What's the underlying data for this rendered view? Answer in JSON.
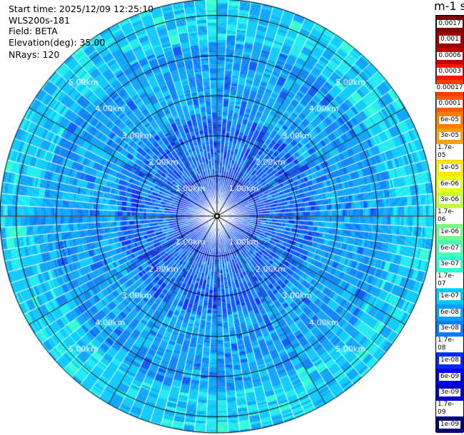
{
  "header": {
    "start_time": "Start time: 2025/12/09 12:25:10",
    "instrument": "WLS200s-181",
    "field": "Field: BETA",
    "elevation": "Elevation(deg): 35.00",
    "nrays": "NRays: 120"
  },
  "colorbar": {
    "unit_title": "m-1 sr-1",
    "bins": [
      {
        "label": "0.0017",
        "color": "#7f0000"
      },
      {
        "label": "0.001",
        "color": "#9f0000"
      },
      {
        "label": "0.0006",
        "color": "#c20000"
      },
      {
        "label": "0.0003",
        "color": "#ff1400"
      },
      {
        "label": "0.00017",
        "color": "#ff3c00"
      },
      {
        "label": "0.0001",
        "color": "#ff5a00"
      },
      {
        "label": "6e-05",
        "color": "#ff7d00"
      },
      {
        "label": "3e-05",
        "color": "#ffa000"
      },
      {
        "label": "1.7e-05",
        "color": "#ffc300"
      },
      {
        "label": "1e-05",
        "color": "#ffe800"
      },
      {
        "label": "6e-06",
        "color": "#e6ff14"
      },
      {
        "label": "3e-06",
        "color": "#c3ff37"
      },
      {
        "label": "1.7e-06",
        "color": "#8cff6e"
      },
      {
        "label": "1e-06",
        "color": "#6eff8c"
      },
      {
        "label": "6e-07",
        "color": "#46ffb4"
      },
      {
        "label": "3e-07",
        "color": "#28ffd2"
      },
      {
        "label": "1.7e-07",
        "color": "#14eaf0"
      },
      {
        "label": "1e-07",
        "color": "#00c8ff"
      },
      {
        "label": "6e-08",
        "color": "#00a0ff"
      },
      {
        "label": "3e-08",
        "color": "#007dff"
      },
      {
        "label": "1.7e-08",
        "color": "#0050ff"
      },
      {
        "label": "1e-08",
        "color": "#0028ff"
      },
      {
        "label": "6e-09",
        "color": "#0000f0"
      },
      {
        "label": "3e-09",
        "color": "#0000c8"
      },
      {
        "label": "1.7e-09",
        "color": "#00009b"
      },
      {
        "label": "1e-09",
        "color": "#00006e"
      }
    ]
  },
  "chart_data": {
    "type": "heatmap",
    "projection": "polar (PPI)",
    "rays": 120,
    "max_range_km": 5.4,
    "range_rings_km": [
      1,
      2,
      3,
      4,
      5
    ],
    "range_labels": [
      "1.00km",
      "2.00km",
      "3.00km",
      "4.00km",
      "5.00km"
    ],
    "spokes_deg": [
      0,
      30,
      60,
      90,
      120,
      150,
      180,
      210,
      240,
      270,
      300,
      330
    ],
    "dominant_value": "1e-08 to 6e-08",
    "near_center_value": "1e-09 to 6e-09",
    "far_range_value": "1e-07 to 3e-07"
  }
}
